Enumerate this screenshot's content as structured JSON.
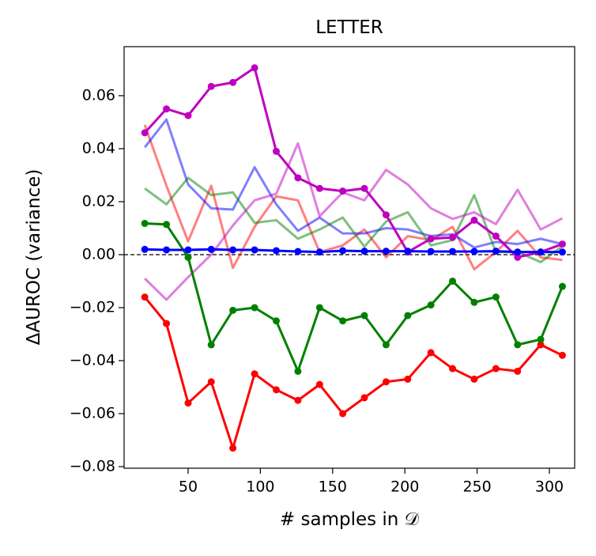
{
  "chart_data": {
    "type": "line",
    "title": "LETTER",
    "x_label": "# samples in 𝒟",
    "y_label": "ΔAUROC (variance)",
    "x": [
      20,
      35,
      50,
      66,
      81,
      96,
      111,
      126,
      141,
      157,
      172,
      187,
      202,
      218,
      233,
      248,
      263,
      278,
      294,
      309
    ],
    "xlim": [
      5.7,
      317.5
    ],
    "xticks": [
      50,
      100,
      150,
      200,
      250,
      300
    ],
    "ylim": [
      -0.0806,
      0.0785
    ],
    "yticks": [
      {
        "value": -0.08,
        "label": "−0.08"
      },
      {
        "value": -0.06,
        "label": "−0.06"
      },
      {
        "value": -0.04,
        "label": "−0.04"
      },
      {
        "value": -0.02,
        "label": "−0.02"
      },
      {
        "value": 0,
        "label": "0.00"
      },
      0.02,
      0.04,
      0.06
    ],
    "hline": 0,
    "series": [
      {
        "color": "#ff0000",
        "opacity": 0.5,
        "markers": false,
        "values": [
          0.049,
          0.026,
          0.005,
          0.026,
          -0.005,
          0.0105,
          0.022,
          0.0205,
          0.001,
          0.0035,
          0.0095,
          -0.001,
          0.007,
          0.0055,
          0.0105,
          -0.0055,
          0.001,
          0.009,
          -0.001,
          -0.002
        ]
      },
      {
        "color": "#0000ff",
        "opacity": 0.5,
        "markers": false,
        "values": [
          0.0405,
          0.051,
          0.0265,
          0.0175,
          0.017,
          0.033,
          0.019,
          0.009,
          0.014,
          0.008,
          0.008,
          0.01,
          0.0095,
          0.007,
          0.0077,
          0.0027,
          0.0048,
          0.004,
          0.006,
          0.004
        ]
      },
      {
        "color": "#008000",
        "opacity": 0.5,
        "markers": false,
        "values": [
          0.025,
          0.019,
          0.029,
          0.0225,
          0.0235,
          0.012,
          0.013,
          0.006,
          0.0095,
          0.014,
          0.003,
          0.0125,
          0.016,
          0.0035,
          0.0055,
          0.0225,
          0.001,
          0.001,
          -0.0028,
          0.0032
        ]
      },
      {
        "color": "#bf00bf",
        "opacity": 0.5,
        "markers": false,
        "values": [
          -0.009,
          -0.017,
          -0.0085,
          0,
          0.011,
          0.0205,
          0.023,
          0.042,
          0.0145,
          0.0235,
          0.0205,
          0.032,
          0.0265,
          0.0175,
          0.0135,
          0.016,
          0.0115,
          0.0245,
          0.0095,
          0.0137
        ]
      },
      {
        "color": "#ff0000",
        "opacity": 1,
        "markers": true,
        "values": [
          -0.016,
          -0.026,
          -0.056,
          -0.048,
          -0.073,
          -0.045,
          -0.051,
          -0.055,
          -0.049,
          -0.06,
          -0.054,
          -0.048,
          -0.047,
          -0.037,
          -0.043,
          -0.047,
          -0.043,
          -0.044,
          -0.034,
          -0.038
        ]
      },
      {
        "color": "#008000",
        "opacity": 1,
        "markers": true,
        "values": [
          0.0118,
          0.0114,
          -0.001,
          -0.034,
          -0.021,
          -0.02,
          -0.025,
          -0.044,
          -0.02,
          -0.025,
          -0.023,
          -0.034,
          -0.023,
          -0.019,
          -0.01,
          -0.018,
          -0.016,
          -0.034,
          -0.032,
          -0.012
        ]
      },
      {
        "color": "#bf00bf",
        "opacity": 1,
        "markers": true,
        "values": [
          0.046,
          0.055,
          0.0525,
          0.0635,
          0.065,
          0.0705,
          0.039,
          0.029,
          0.025,
          0.024,
          0.025,
          0.015,
          0.001,
          0.006,
          0.0065,
          0.013,
          0.007,
          -0.001,
          0.001,
          0.004
        ]
      },
      {
        "color": "#0000ff",
        "opacity": 1,
        "markers": true,
        "values": [
          0.002,
          0.0018,
          0.0018,
          0.002,
          0.0018,
          0.0018,
          0.0015,
          0.0012,
          0.001,
          0.0015,
          0.0013,
          0.0013,
          0.0013,
          0.0012,
          0.0012,
          0.0012,
          0.0013,
          0.001,
          0.001,
          0.001
        ]
      }
    ]
  }
}
